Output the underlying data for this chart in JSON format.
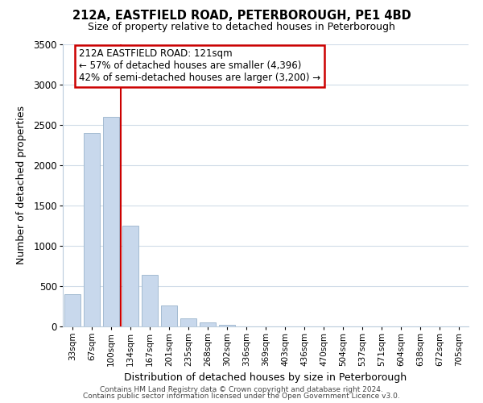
{
  "title": "212A, EASTFIELD ROAD, PETERBOROUGH, PE1 4BD",
  "subtitle": "Size of property relative to detached houses in Peterborough",
  "xlabel": "Distribution of detached houses by size in Peterborough",
  "ylabel": "Number of detached properties",
  "bar_color": "#c8d8ec",
  "bar_edge_color": "#9ab4cc",
  "categories": [
    "33sqm",
    "67sqm",
    "100sqm",
    "134sqm",
    "167sqm",
    "201sqm",
    "235sqm",
    "268sqm",
    "302sqm",
    "336sqm",
    "369sqm",
    "403sqm",
    "436sqm",
    "470sqm",
    "504sqm",
    "537sqm",
    "571sqm",
    "604sqm",
    "638sqm",
    "672sqm",
    "705sqm"
  ],
  "values": [
    400,
    2400,
    2600,
    1250,
    640,
    260,
    100,
    50,
    20,
    5,
    2,
    1,
    0,
    0,
    0,
    0,
    0,
    0,
    0,
    0,
    0
  ],
  "ylim": [
    0,
    3500
  ],
  "yticks": [
    0,
    500,
    1000,
    1500,
    2000,
    2500,
    3000,
    3500
  ],
  "marker_label": "212A EASTFIELD ROAD: 121sqm",
  "annotation_line1": "← 57% of detached houses are smaller (4,396)",
  "annotation_line2": "42% of semi-detached houses are larger (3,200) →",
  "annotation_box_color": "#ffffff",
  "annotation_box_edge_color": "#cc0000",
  "marker_line_color": "#cc0000",
  "footer_line1": "Contains HM Land Registry data © Crown copyright and database right 2024.",
  "footer_line2": "Contains public sector information licensed under the Open Government Licence v3.0.",
  "background_color": "#ffffff",
  "grid_color": "#d0dce8"
}
